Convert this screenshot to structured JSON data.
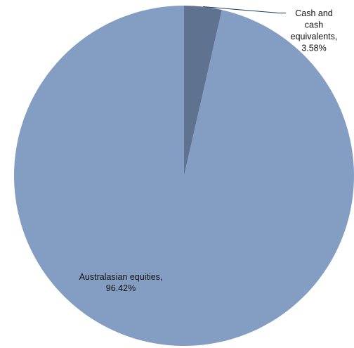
{
  "chart_data": {
    "type": "pie",
    "slices": [
      {
        "name": "Cash and cash equivalents",
        "value": 3.58,
        "label_lines": [
          "Cash and",
          "cash",
          "equivalents,",
          "3.58%"
        ],
        "color": "#5f7390"
      },
      {
        "name": "Australasian equities",
        "value": 96.42,
        "label_lines": [
          "Australasian equities,",
          "96.42%"
        ],
        "color": "#849dc2"
      }
    ],
    "start_angle": "12 o'clock",
    "direction": "clockwise",
    "legend": "none",
    "title": ""
  }
}
